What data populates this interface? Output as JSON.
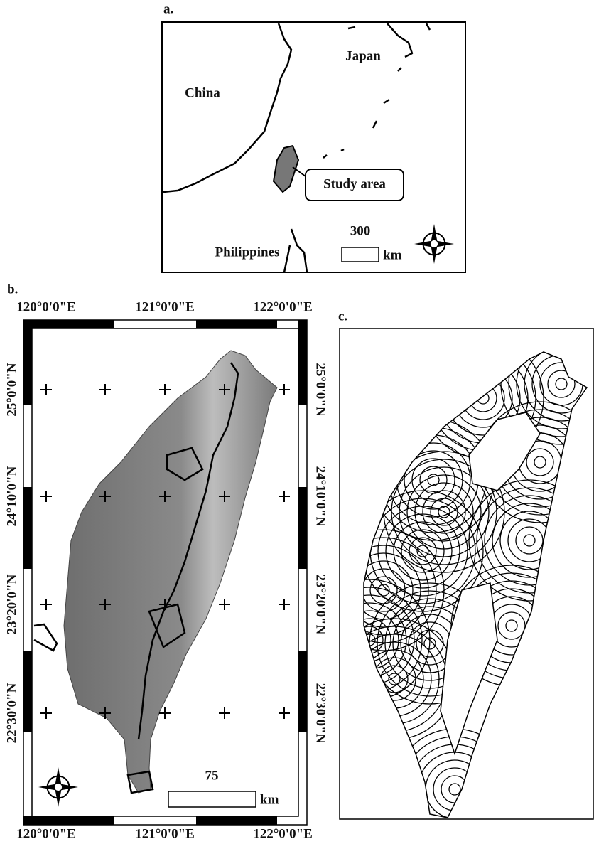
{
  "panel_a": {
    "label": "a.",
    "china": "China",
    "japan": "Japan",
    "philippines": "Philippines",
    "callout": "Study area",
    "scale_value": 300,
    "scale_unit": "km"
  },
  "panel_b": {
    "label": "b.",
    "lon_labels": [
      "120°0'0\"E",
      "121°0'0\"E",
      "122°0'0\"E"
    ],
    "lat_labels": [
      "25°0'0\"N",
      "24°10'0\"N",
      "23°20'0\"N",
      "22°30'0\"N"
    ],
    "scale_value": 75,
    "scale_unit": "km"
  },
  "panel_c": {
    "label": "c."
  }
}
